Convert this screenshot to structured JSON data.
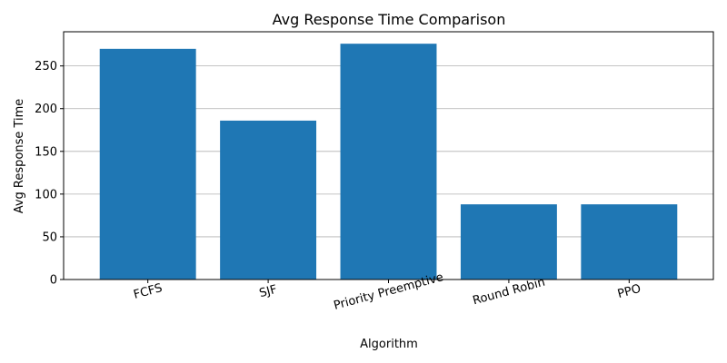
{
  "chart_data": {
    "type": "bar",
    "title": "Avg Response Time Comparison",
    "xlabel": "Algorithm",
    "ylabel": "Avg Response Time",
    "categories": [
      "FCFS",
      "SJF",
      "Priority Preemptive",
      "Round Robin",
      "PPO"
    ],
    "values": [
      270,
      186,
      276,
      88,
      88
    ],
    "ylim": [
      0,
      290
    ],
    "yticks": [
      0,
      50,
      100,
      150,
      200,
      250
    ],
    "grid": "y",
    "bar_color": "#1f77b4",
    "grid_color": "#b0b0b0"
  }
}
